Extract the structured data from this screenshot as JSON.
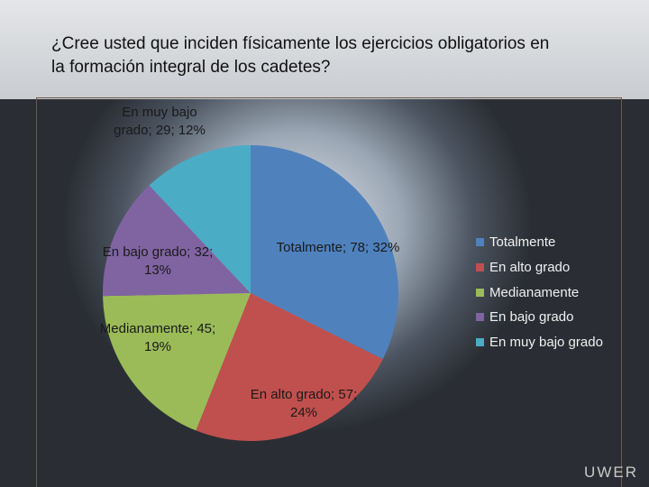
{
  "chart_data": {
    "type": "pie",
    "title": "¿Cree usted que inciden físicamente los ejercicios obligatorios en la formación integral de los cadetes?",
    "categories": [
      "Totalmente",
      "En alto grado",
      "Medianamente",
      "En bajo grado",
      "En muy bajo grado"
    ],
    "values": [
      78,
      57,
      45,
      32,
      29
    ],
    "value_labels": [
      "Totalmente; 78; 32%",
      "En alto grado; 57; 24%",
      "Medianamente; 45; 19%",
      "En bajo grado; 32; 13%",
      "En muy bajo grado; 29; 12%"
    ],
    "colors": [
      "#4f81bd",
      "#c0504d",
      "#9bbb59",
      "#8064a2",
      "#4bacc6"
    ],
    "legend": "right"
  },
  "watermark": "UWER"
}
